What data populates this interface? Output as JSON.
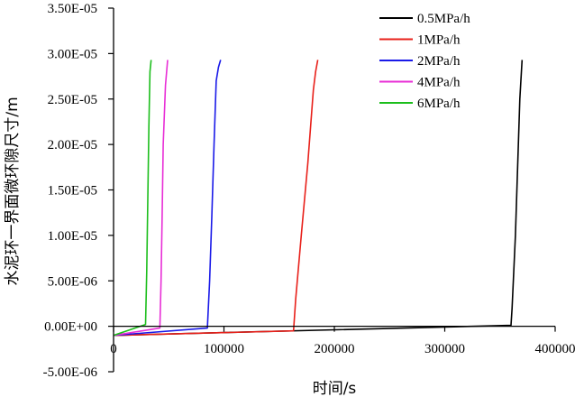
{
  "chart_data": {
    "type": "line",
    "title": "",
    "xlabel": "时间/s",
    "ylabel": "水泥环一界面微环隙尺寸/m",
    "xlim": [
      0,
      400000
    ],
    "ylim": [
      -5e-06,
      3.5e-05
    ],
    "x_ticks": [
      {
        "value": 0,
        "label": "0"
      },
      {
        "value": 100000,
        "label": "100000"
      },
      {
        "value": 200000,
        "label": "200000"
      },
      {
        "value": 300000,
        "label": "300000"
      },
      {
        "value": 400000,
        "label": "400000"
      }
    ],
    "y_ticks": [
      {
        "value": -5e-06,
        "label": "-5.00E-06"
      },
      {
        "value": 0,
        "label": "0.00E+00"
      },
      {
        "value": 5e-06,
        "label": "5.00E-06"
      },
      {
        "value": 1e-05,
        "label": "1.00E-05"
      },
      {
        "value": 1.5e-05,
        "label": "1.50E-05"
      },
      {
        "value": 2e-05,
        "label": "2.00E-05"
      },
      {
        "value": 2.5e-05,
        "label": "2.50E-05"
      },
      {
        "value": 3e-05,
        "label": "3.00E-05"
      },
      {
        "value": 3.5e-05,
        "label": "3.50E-05"
      }
    ],
    "grid": false,
    "legend_position": "top-right",
    "series": [
      {
        "name": "0.5MPa/h",
        "color": "#000000",
        "points": [
          [
            0,
            -1e-06
          ],
          [
            360000,
            1e-07
          ],
          [
            361000,
            2e-06
          ],
          [
            364000,
            1e-05
          ],
          [
            368000,
            2.5e-05
          ],
          [
            370000,
            2.93e-05
          ]
        ]
      },
      {
        "name": "1MPa/h",
        "color": "#e8201a",
        "points": [
          [
            0,
            -1e-06
          ],
          [
            163000,
            -5e-07
          ],
          [
            165000,
            3e-06
          ],
          [
            170000,
            1e-05
          ],
          [
            176000,
            1.8e-05
          ],
          [
            181000,
            2.6e-05
          ],
          [
            183000,
            2.8e-05
          ],
          [
            185000,
            2.93e-05
          ]
        ]
      },
      {
        "name": "2MPa/h",
        "color": "#1a1ae8",
        "points": [
          [
            0,
            -1e-06
          ],
          [
            85000,
            -2e-07
          ],
          [
            87000,
            5e-06
          ],
          [
            89000,
            1.2e-05
          ],
          [
            91000,
            2e-05
          ],
          [
            93000,
            2.7e-05
          ],
          [
            95000,
            2.85e-05
          ],
          [
            97000,
            2.93e-05
          ]
        ]
      },
      {
        "name": "4MPa/h",
        "color": "#e82ed6",
        "points": [
          [
            0,
            -1e-06
          ],
          [
            42000,
            -2e-07
          ],
          [
            43000,
            5e-06
          ],
          [
            44000,
            1.2e-05
          ],
          [
            45000,
            2e-05
          ],
          [
            47000,
            2.65e-05
          ],
          [
            49000,
            2.93e-05
          ]
        ]
      },
      {
        "name": "6MPa/h",
        "color": "#1cbe1c",
        "points": [
          [
            0,
            -1e-06
          ],
          [
            29000,
            2e-07
          ],
          [
            30000,
            6e-06
          ],
          [
            31000,
            1.4e-05
          ],
          [
            32000,
            2.2e-05
          ],
          [
            33000,
            2.8e-05
          ],
          [
            34000,
            2.93e-05
          ]
        ]
      }
    ]
  }
}
